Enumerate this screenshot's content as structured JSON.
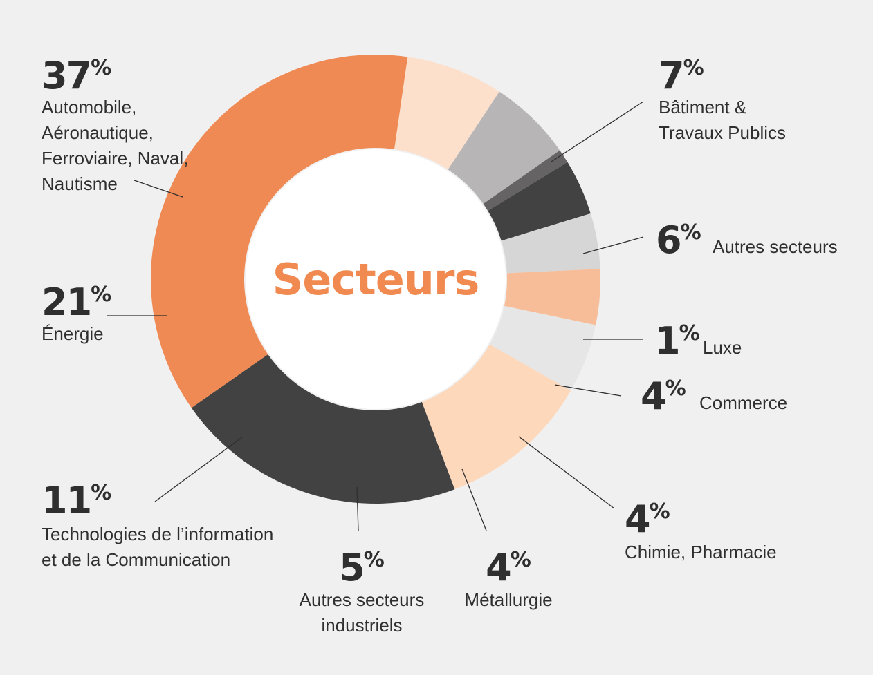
{
  "chart_data": {
    "type": "pie",
    "title": "Secteurs",
    "hole": true,
    "colors": {
      "text_dark": "#2f2f2f",
      "title": "#f08a50",
      "leader": "#2f2f2f",
      "background": "#f0f0f0"
    },
    "slices": [
      {
        "value": 37,
        "pct_label": "37",
        "label_lines": [
          "Automobile,",
          "Aéronautique,",
          "Ferroviaire, Naval,",
          "Nautisme"
        ],
        "color": "#f08a55"
      },
      {
        "value": 7,
        "pct_label": "7",
        "label_lines": [
          "Bâtiment &",
          "Travaux Publics"
        ],
        "color": "#fde0cc"
      },
      {
        "value": 6,
        "pct_label": "6",
        "label_lines": [
          "Autres secteurs"
        ],
        "color": "#b7b5b5"
      },
      {
        "value": 1,
        "pct_label": "1",
        "label_lines": [
          "Luxe"
        ],
        "color": "#656364"
      },
      {
        "value": 4,
        "pct_label": "4",
        "label_lines": [
          "Commerce"
        ],
        "color": "#424242"
      },
      {
        "value": 4,
        "pct_label": "4",
        "label_lines": [
          "Chimie, Pharmacie"
        ],
        "color": "#d6d6d6"
      },
      {
        "value": 4,
        "pct_label": "4",
        "label_lines": [
          "Métallurgie"
        ],
        "color": "#f7bd98"
      },
      {
        "value": 5,
        "pct_label": "5",
        "label_lines": [
          "Autres secteurs",
          "industriels"
        ],
        "color": "#e6e6e6"
      },
      {
        "value": 11,
        "pct_label": "11",
        "label_lines": [
          "Technologies de l’information",
          "et de la Communication"
        ],
        "color": "#fdd8bb"
      },
      {
        "value": 21,
        "pct_label": "21",
        "label_lines": [
          "Énergie"
        ],
        "color": "#424242"
      }
    ],
    "percent_sign": "%"
  }
}
